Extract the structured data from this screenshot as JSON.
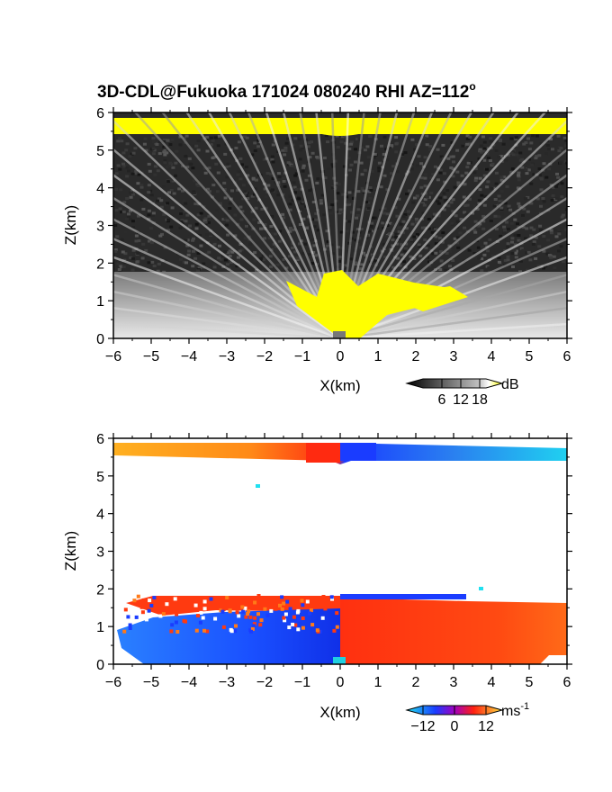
{
  "title": "3D-CDL@Fukuoka 171024 080240 RHI AZ=112",
  "title_degree": "o",
  "chart_data": [
    {
      "type": "heatmap",
      "panel": "top",
      "quantity": "reflectivity",
      "xlabel": "X(km)",
      "ylabel": "Z(km)",
      "xlim": [
        -6,
        6
      ],
      "ylim": [
        0,
        6
      ],
      "xticks": [
        -6,
        -5,
        -4,
        -3,
        -2,
        -1,
        0,
        1,
        2,
        3,
        4,
        5,
        6
      ],
      "yticks": [
        0,
        1,
        2,
        3,
        4,
        5,
        6
      ],
      "colorbar": {
        "unit": "dB",
        "ticks": [
          6,
          12,
          18
        ],
        "min": 0,
        "max": 20
      },
      "colors": {
        "noise": "#2a2a2a",
        "high": "#ffff00"
      },
      "layers": [
        {
          "name": "upper echo band",
          "z_bottom_km": 5.45,
          "z_top_km": 5.9,
          "x_from_km": -6,
          "x_to_km": 6,
          "value_dB": 18
        },
        {
          "name": "noise region",
          "z_bottom_km": 1.75,
          "z_top_km": 5.45,
          "x_from_km": -6,
          "x_to_km": 6,
          "value_dB": 2
        },
        {
          "name": "boundary layer echo",
          "z_bottom_km": 0,
          "z_top_km": 1.75,
          "x_from_km": -6,
          "x_to_km": 6,
          "value_dB": 12
        },
        {
          "name": "near-radar strong echo",
          "z_bottom_km": 0,
          "z_top_km": 1.6,
          "x_from_km": -1.2,
          "x_to_km": 3.2,
          "value_dB": 18
        }
      ]
    },
    {
      "type": "heatmap",
      "panel": "bottom",
      "quantity": "Doppler velocity",
      "xlabel": "X(km)",
      "ylabel": "Z(km)",
      "xlim": [
        -6,
        6
      ],
      "ylim": [
        0,
        6
      ],
      "xticks": [
        -6,
        -5,
        -4,
        -3,
        -2,
        -1,
        0,
        1,
        2,
        3,
        4,
        5,
        6
      ],
      "yticks": [
        0,
        1,
        2,
        3,
        4,
        5,
        6
      ],
      "colorbar": {
        "unit": "ms",
        "unit_exponent": "-1",
        "ticks": [
          "−12",
          "0",
          "12"
        ],
        "min": -12,
        "max": 12
      },
      "colors": {
        "negative": "#1a3cff",
        "positive": "#ff3a10",
        "far_negative": "#20d0f0",
        "far_positive": "#ffb020"
      },
      "layers": [
        {
          "name": "upper band west",
          "z_bottom_km": 5.6,
          "z_top_km": 5.95,
          "x_from_km": -6,
          "x_to_km": 0,
          "value_ms": [
            10,
            3
          ]
        },
        {
          "name": "upper band east",
          "z_bottom_km": 5.5,
          "z_top_km": 5.9,
          "x_from_km": 0,
          "x_to_km": 6,
          "value_ms": [
            -3,
            -10
          ]
        },
        {
          "name": "lower layer west",
          "z_bottom_km": 0,
          "z_top_km": 1.4,
          "x_from_km": -6,
          "x_to_km": 0,
          "value_ms": -6
        },
        {
          "name": "lower layer east",
          "z_bottom_km": 0,
          "z_top_km": 1.65,
          "x_from_km": 0,
          "x_to_km": 6,
          "value_ms": 4
        },
        {
          "name": "top of lower layer west",
          "z_bottom_km": 1.4,
          "z_top_km": 1.75,
          "x_from_km": -5.5,
          "x_to_km": 0,
          "value_ms": 3
        }
      ]
    }
  ]
}
